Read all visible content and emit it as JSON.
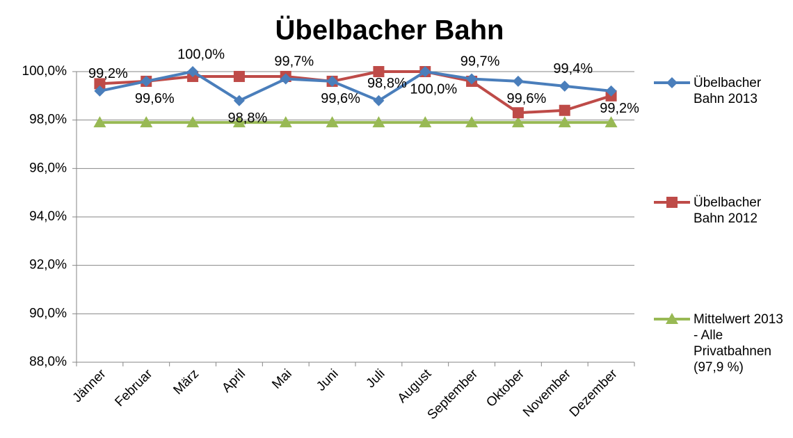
{
  "chart_data": {
    "type": "line",
    "title": "Übelbacher Bahn",
    "categories": [
      "Jänner",
      "Februar",
      "März",
      "April",
      "Mai",
      "Juni",
      "Juli",
      "August",
      "September",
      "Oktober",
      "November",
      "Dezember"
    ],
    "series": [
      {
        "name": "Übelbacher Bahn 2013",
        "color": "#4a7ebb",
        "marker": "diamond",
        "values": [
          99.2,
          99.6,
          100,
          98.8,
          99.7,
          99.6,
          98.8,
          100,
          99.7,
          99.6,
          99.4,
          99.2
        ],
        "value_labels": [
          "99,2%",
          "99,6%",
          "100,0%",
          "98,8%",
          "99,7%",
          "99,6%",
          "98,8%",
          "100,0%",
          "99,7%",
          "99,6%",
          "99,4%",
          "99,2%"
        ]
      },
      {
        "name": "Übelbacher Bahn 2012",
        "color": "#be4b48",
        "marker": "square",
        "values": [
          99.5,
          99.6,
          99.8,
          99.8,
          99.8,
          99.6,
          100,
          100,
          99.6,
          98.3,
          98.4,
          99.0
        ]
      },
      {
        "name": "Mittelwert 2013 - Alle Privatbahnen (97,9 %)",
        "color": "#98b954",
        "marker": "triangle",
        "values": [
          97.9,
          97.9,
          97.9,
          97.9,
          97.9,
          97.9,
          97.9,
          97.9,
          97.9,
          97.9,
          97.9,
          97.9
        ]
      }
    ],
    "ylim": [
      88,
      100
    ],
    "yticks": [
      {
        "value": 88,
        "label": "88,0%"
      },
      {
        "value": 90,
        "label": "90,0%"
      },
      {
        "value": 92,
        "label": "92,0%"
      },
      {
        "value": 94,
        "label": "94,0%"
      },
      {
        "value": 96,
        "label": "96,0%"
      },
      {
        "value": 98,
        "label": "98,0%"
      },
      {
        "value": 100,
        "label": "100,0%"
      }
    ],
    "grid": true,
    "legend": "right"
  }
}
